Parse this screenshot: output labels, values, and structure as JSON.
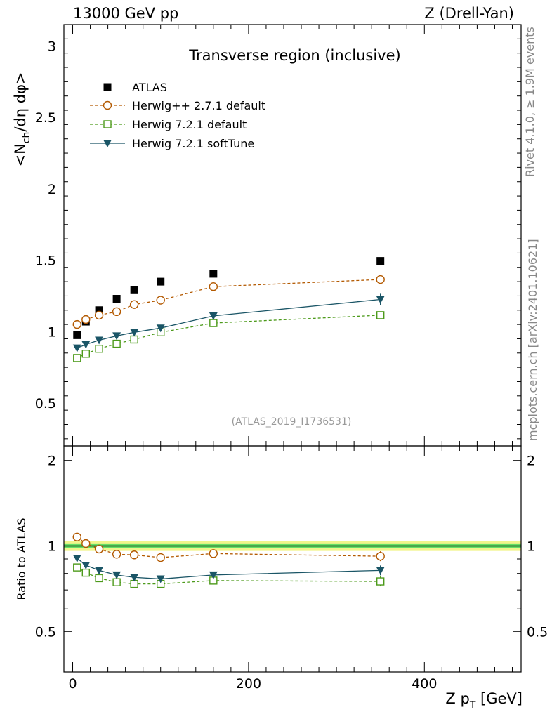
{
  "header": {
    "left": "13000 GeV pp",
    "right": "Z (Drell-Yan)"
  },
  "side_labels": {
    "rivet": "Rivet 4.1.0, ≥ 1.9M events",
    "mcplots": "mcplots.cern.ch [arXiv:2401.10621]"
  },
  "colors": {
    "atlas": "#000000",
    "herwigpp": "#b35900",
    "herwig721": "#4c9a1a",
    "softtune": "#1a5566",
    "band_outer": "#f2f58c",
    "band_inner": "#66e066"
  },
  "chart_data": [
    {
      "type": "scatter",
      "title": "Transverse region (inclusive)",
      "ylabel": "<N_ch/dη dφ>",
      "xlabel": "Z p_T [GeV]",
      "watermark": "(ATLAS_2019_I1736531)",
      "xlim": [
        -10,
        510
      ],
      "ylim": [
        0.2,
        3.15
      ],
      "yticks": [
        0.5,
        1,
        1.5,
        2,
        2.5,
        3
      ],
      "ytick_labels": [
        "0.5",
        "1",
        "1.5",
        "2",
        "2.5",
        "3"
      ],
      "x": [
        5,
        15,
        30,
        50,
        70,
        100,
        160,
        350
      ],
      "series": [
        {
          "name": "ATLAS",
          "marker": "square-filled",
          "values": [
            0.975,
            1.07,
            1.15,
            1.23,
            1.29,
            1.35,
            1.405,
            1.495
          ]
        },
        {
          "name": "Herwig++ 2.7.1 default",
          "marker": "circle-open",
          "line": "dashed",
          "values": [
            1.05,
            1.085,
            1.115,
            1.14,
            1.19,
            1.22,
            1.315,
            1.365
          ],
          "errors": [
            0,
            0,
            0,
            0,
            0,
            0,
            0,
            0.03
          ]
        },
        {
          "name": "Herwig 7.2.1 default",
          "marker": "square-open",
          "line": "dashed",
          "values": [
            0.815,
            0.845,
            0.88,
            0.915,
            0.945,
            0.995,
            1.06,
            1.115
          ],
          "errors": [
            0,
            0,
            0,
            0,
            0,
            0,
            0,
            0.02
          ]
        },
        {
          "name": "Herwig 7.2.1 softTune",
          "marker": "triangle-down-filled",
          "line": "solid",
          "values": [
            0.885,
            0.91,
            0.94,
            0.97,
            0.995,
            1.025,
            1.11,
            1.225
          ],
          "errors": [
            0,
            0,
            0,
            0,
            0,
            0,
            0,
            0.04
          ]
        }
      ]
    },
    {
      "type": "line",
      "ylabel": "Ratio to ATLAS",
      "xlabel": "Z p_T [GeV]",
      "xlim": [
        -10,
        510
      ],
      "ylim": [
        0.36,
        2.25
      ],
      "yticks": [
        0.5,
        1,
        2
      ],
      "ytick_labels": [
        "0.5",
        "1",
        "2"
      ],
      "xticks": [
        0,
        200,
        400
      ],
      "xtick_labels": [
        "0",
        "200",
        "400"
      ],
      "reference_band": {
        "outer": [
          0.96,
          1.04
        ],
        "inner": [
          0.985,
          1.015
        ]
      },
      "x": [
        5,
        15,
        30,
        50,
        70,
        100,
        160,
        350
      ],
      "series": [
        {
          "name": "Herwig++ 2.7.1 default",
          "values": [
            1.075,
            1.02,
            0.975,
            0.935,
            0.93,
            0.91,
            0.94,
            0.92
          ]
        },
        {
          "name": "Herwig 7.2.1 default",
          "values": [
            0.84,
            0.805,
            0.77,
            0.745,
            0.735,
            0.735,
            0.755,
            0.75
          ]
        },
        {
          "name": "Herwig 7.2.1 softTune",
          "values": [
            0.905,
            0.855,
            0.82,
            0.79,
            0.775,
            0.765,
            0.79,
            0.82
          ]
        }
      ]
    }
  ]
}
